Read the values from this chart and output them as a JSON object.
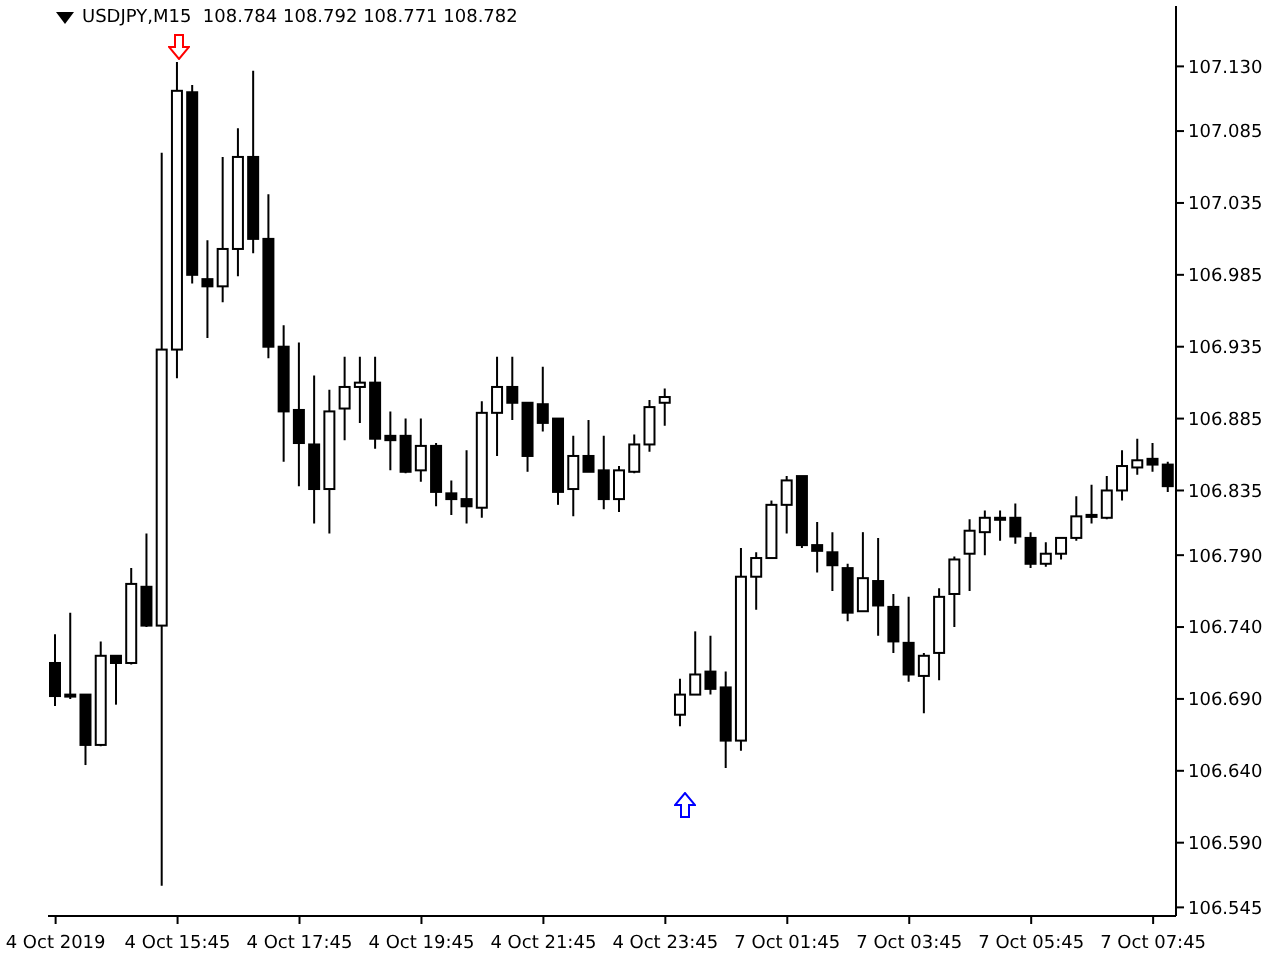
{
  "chart_data": {
    "type": "candlestick",
    "title": "USDJPY,M15  108.784 108.792 108.771 108.782",
    "color": "#000000",
    "categories": [
      "4 Oct 2019",
      null,
      null,
      null,
      null,
      null,
      null,
      null,
      "4 Oct 15:45",
      null,
      null,
      null,
      null,
      null,
      null,
      null,
      "4 Oct 17:45",
      null,
      null,
      null,
      null,
      null,
      null,
      null,
      "4 Oct 19:45",
      null,
      null,
      null,
      null,
      null,
      null,
      null,
      "4 Oct 21:45",
      null,
      null,
      null,
      null,
      null,
      null,
      null,
      "4 Oct 23:45",
      null,
      null,
      null,
      null,
      null,
      null,
      null,
      "7 Oct 01:45",
      null,
      null,
      null,
      null,
      null,
      null,
      null,
      "7 Oct 03:45",
      null,
      null,
      null,
      null,
      null,
      null,
      null,
      "7 Oct 05:45",
      null,
      null,
      null,
      null,
      null,
      null,
      null,
      "7 Oct 07:45",
      null
    ],
    "ohlc": [
      [
        106.715,
        106.735,
        106.685,
        106.692
      ],
      [
        106.693,
        106.75,
        106.69,
        106.692
      ],
      [
        106.693,
        106.693,
        106.644,
        106.658
      ],
      [
        106.658,
        106.73,
        106.657,
        106.72
      ],
      [
        106.72,
        106.72,
        106.686,
        106.715
      ],
      [
        106.715,
        106.781,
        106.714,
        106.77
      ],
      [
        106.768,
        106.805,
        106.74,
        106.741
      ],
      [
        106.741,
        107.07,
        106.56,
        106.933
      ],
      [
        106.933,
        107.133,
        106.913,
        107.113
      ],
      [
        107.112,
        107.117,
        106.979,
        106.985
      ],
      [
        106.982,
        107.009,
        106.941,
        106.977
      ],
      [
        106.977,
        107.067,
        106.966,
        107.003
      ],
      [
        107.003,
        107.087,
        106.984,
        107.067
      ],
      [
        107.067,
        107.127,
        107.0,
        107.01
      ],
      [
        107.01,
        107.041,
        106.927,
        106.935
      ],
      [
        106.935,
        106.95,
        106.855,
        106.89
      ],
      [
        106.891,
        106.938,
        106.838,
        106.868
      ],
      [
        106.867,
        106.915,
        106.812,
        106.836
      ],
      [
        106.836,
        106.905,
        106.805,
        106.89
      ],
      [
        106.892,
        106.928,
        106.87,
        106.907
      ],
      [
        106.907,
        106.928,
        106.882,
        106.91
      ],
      [
        106.91,
        106.928,
        106.864,
        106.871
      ],
      [
        106.873,
        106.89,
        106.849,
        106.87
      ],
      [
        106.873,
        106.885,
        106.847,
        106.848
      ],
      [
        106.849,
        106.885,
        106.841,
        106.866
      ],
      [
        106.866,
        106.868,
        106.824,
        106.834
      ],
      [
        106.833,
        106.842,
        106.818,
        106.829
      ],
      [
        106.829,
        106.863,
        106.812,
        106.824
      ],
      [
        106.823,
        106.897,
        106.816,
        106.889
      ],
      [
        106.889,
        106.928,
        106.859,
        106.907
      ],
      [
        106.907,
        106.928,
        106.884,
        106.896
      ],
      [
        106.896,
        106.896,
        106.848,
        106.859
      ],
      [
        106.895,
        106.921,
        106.876,
        106.882
      ],
      [
        106.885,
        106.885,
        106.825,
        106.834
      ],
      [
        106.836,
        106.873,
        106.817,
        106.859
      ],
      [
        106.859,
        106.884,
        106.848,
        106.848
      ],
      [
        106.849,
        106.873,
        106.822,
        106.829
      ],
      [
        106.829,
        106.852,
        106.82,
        106.849
      ],
      [
        106.848,
        106.874,
        106.847,
        106.867
      ],
      [
        106.867,
        106.898,
        106.862,
        106.893
      ],
      [
        106.896,
        106.906,
        106.88,
        106.9
      ],
      [
        106.679,
        106.704,
        106.671,
        106.693
      ],
      [
        106.693,
        106.737,
        106.693,
        106.707
      ],
      [
        106.709,
        106.734,
        106.693,
        106.697
      ],
      [
        106.698,
        106.709,
        106.642,
        106.661
      ],
      [
        106.661,
        106.795,
        106.654,
        106.775
      ],
      [
        106.775,
        106.792,
        106.752,
        106.788
      ],
      [
        106.788,
        106.828,
        106.788,
        106.825
      ],
      [
        106.825,
        106.845,
        106.805,
        106.842
      ],
      [
        106.845,
        106.845,
        106.795,
        106.797
      ],
      [
        106.797,
        106.813,
        106.778,
        106.793
      ],
      [
        106.792,
        106.806,
        106.765,
        106.783
      ],
      [
        106.781,
        106.784,
        106.744,
        106.75
      ],
      [
        106.751,
        106.806,
        106.751,
        106.774
      ],
      [
        106.772,
        106.802,
        106.734,
        106.755
      ],
      [
        106.754,
        106.763,
        106.722,
        106.73
      ],
      [
        106.729,
        106.761,
        106.702,
        106.707
      ],
      [
        106.706,
        106.722,
        106.68,
        106.72
      ],
      [
        106.722,
        106.767,
        106.703,
        106.761
      ],
      [
        106.763,
        106.789,
        106.74,
        106.787
      ],
      [
        106.791,
        106.815,
        106.765,
        106.807
      ],
      [
        106.806,
        106.821,
        106.79,
        106.816
      ],
      [
        106.816,
        106.821,
        106.8,
        106.816
      ],
      [
        106.816,
        106.826,
        106.798,
        106.803
      ],
      [
        106.802,
        106.806,
        106.781,
        106.784
      ],
      [
        106.784,
        106.799,
        106.782,
        106.791
      ],
      [
        106.791,
        106.802,
        106.787,
        106.802
      ],
      [
        106.802,
        106.831,
        106.8,
        106.817
      ],
      [
        106.817,
        106.839,
        106.812,
        106.818
      ],
      [
        106.816,
        106.845,
        106.815,
        106.835
      ],
      [
        106.835,
        106.863,
        106.828,
        106.852
      ],
      [
        106.851,
        106.871,
        106.846,
        106.856
      ],
      [
        106.857,
        106.868,
        106.848,
        106.853
      ],
      [
        106.853,
        106.855,
        106.834,
        106.838
      ]
    ],
    "ylim": [
      106.539,
      107.172
    ],
    "yticks": [
      {
        "value": 107.13,
        "label": "107.130"
      },
      107.085,
      107.035,
      106.985,
      106.935,
      106.885,
      106.835,
      {
        "value": 106.79,
        "label": "106.790"
      },
      {
        "value": 106.74,
        "label": "106.740"
      },
      {
        "value": 106.69,
        "label": "106.690"
      },
      {
        "value": 106.64,
        "label": "106.640"
      },
      {
        "value": 106.59,
        "label": "106.590"
      },
      106.545
    ]
  }
}
